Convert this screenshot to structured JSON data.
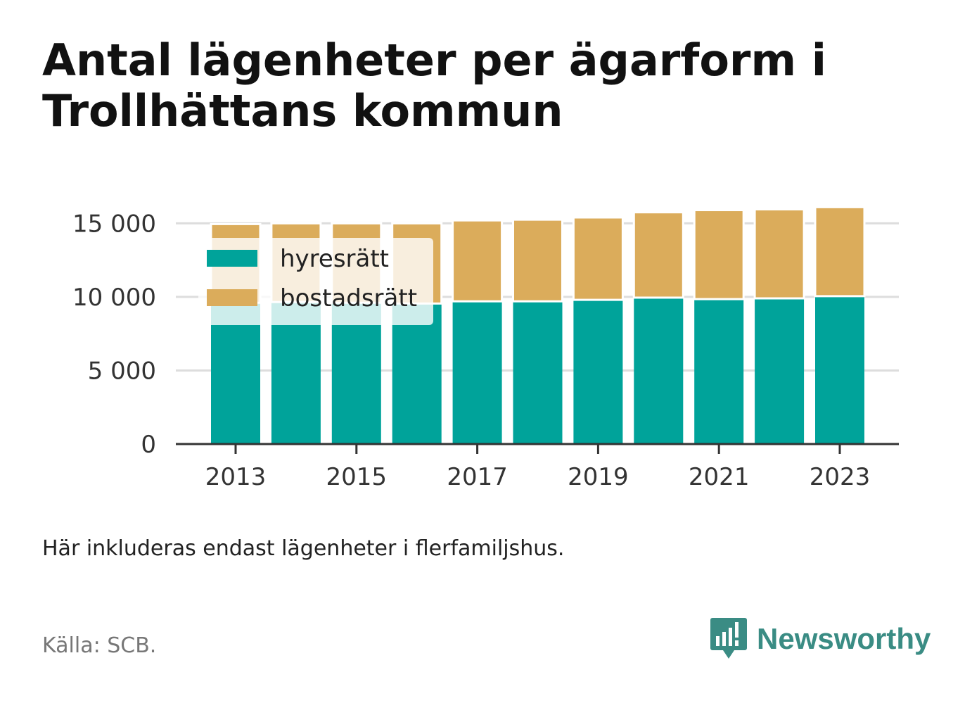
{
  "title": "Antal lägenheter per ägarform i Trollhättans kommun",
  "note": "Här inkluderas endast lägenheter i flerfamiljshus.",
  "source": "Källa: SCB.",
  "brand": {
    "name": "Newsworthy",
    "logo_icon": "bar-chart-speech-icon",
    "color": "#3a8c84"
  },
  "colors": {
    "hyresratt": "#00a39a",
    "bostadsratt": "#dbac5b",
    "grid": "#dddddd",
    "axis": "#333333"
  },
  "chart_data": {
    "type": "bar",
    "stacked": true,
    "categories": [
      "2013",
      "2014",
      "2015",
      "2016",
      "2017",
      "2018",
      "2019",
      "2020",
      "2021",
      "2022",
      "2023"
    ],
    "x_tick_labels": [
      "2013",
      "2015",
      "2017",
      "2019",
      "2021",
      "2023"
    ],
    "series": [
      {
        "name": "hyresrätt",
        "color": "#00a39a",
        "values": [
          9600,
          9650,
          9600,
          9550,
          9700,
          9700,
          9800,
          9950,
          9850,
          9900,
          10050
        ]
      },
      {
        "name": "bostadsrätt",
        "color": "#dbac5b",
        "values": [
          5350,
          5350,
          5400,
          5450,
          5500,
          5550,
          5600,
          5800,
          6050,
          6050,
          6050
        ]
      }
    ],
    "y_ticks": [
      0,
      5000,
      10000,
      15000
    ],
    "y_tick_labels": [
      "0",
      "5 000",
      "10 000",
      "15 000"
    ],
    "ylim": [
      0,
      16500
    ],
    "grid": true,
    "legend_position": "top-left"
  }
}
